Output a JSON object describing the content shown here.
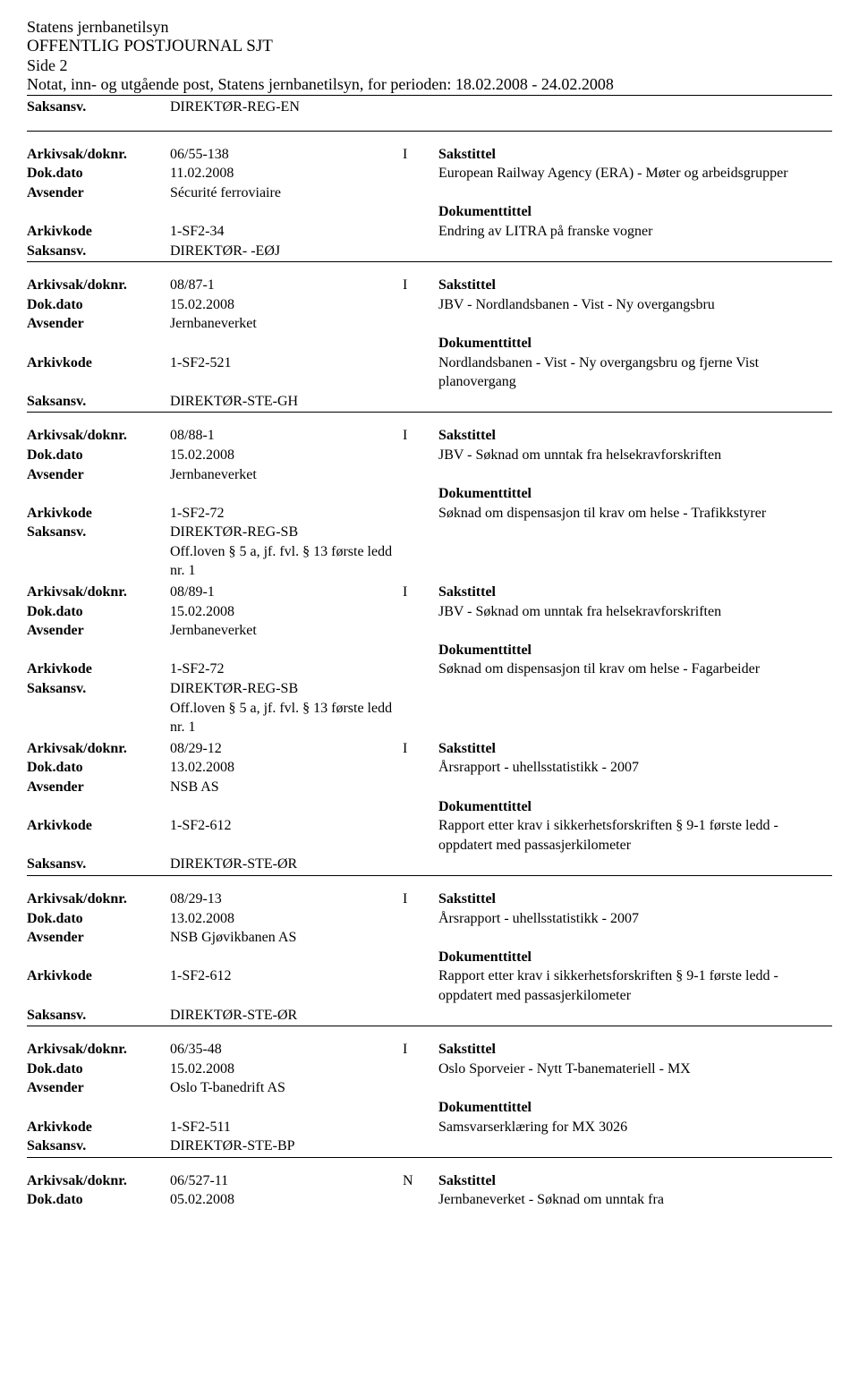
{
  "header": {
    "org": "Statens jernbanetilsyn",
    "title": "OFFENTLIG POSTJOURNAL SJT",
    "page": "Side 2",
    "period": "Notat, inn- og utgående post, Statens jernbanetilsyn, for perioden: 18.02.2008 - 24.02.2008"
  },
  "labels": {
    "saksansv": "Saksansv.",
    "arkivsak": "Arkivsak/doknr.",
    "dokdato": "Dok.dato",
    "avsender": "Avsender",
    "arkivkode": "Arkivkode",
    "sakstittel": "Sakstittel",
    "dokumenttittel": "Dokumenttittel"
  },
  "top_saksansv": "DIREKTØR-REG-EN",
  "entries": [
    {
      "arkivsak": "06/55-138",
      "marker": "I",
      "dokdato": "11.02.2008",
      "avsender": "Sécurité ferroviaire",
      "arkivkode": "1-SF2-34",
      "saksansv": "DIREKTØR- -EØJ",
      "sakstittel": "European Railway Agency (ERA) - Møter og arbeidsgrupper",
      "doktittel": "Endring av LITRA på franske vogner",
      "offloven": ""
    },
    {
      "arkivsak": "08/87-1",
      "marker": "I",
      "dokdato": "15.02.2008",
      "avsender": "Jernbaneverket",
      "arkivkode": "1-SF2-521",
      "saksansv": "DIREKTØR-STE-GH",
      "sakstittel": "JBV - Nordlandsbanen - Vist - Ny overgangsbru",
      "doktittel": "Nordlandsbanen - Vist - Ny overgangsbru og fjerne Vist planovergang",
      "offloven": ""
    },
    {
      "arkivsak": "08/88-1",
      "marker": "I",
      "dokdato": "15.02.2008",
      "avsender": "Jernbaneverket",
      "arkivkode": "1-SF2-72",
      "saksansv": "DIREKTØR-REG-SB",
      "sakstittel": "JBV - Søknad om unntak fra helsekravforskriften",
      "doktittel": "Søknad om dispensasjon til krav om helse - Trafikkstyrer",
      "offloven": "Off.loven § 5 a, jf. fvl. § 13 første ledd nr. 1"
    },
    {
      "arkivsak": "08/89-1",
      "marker": "I",
      "dokdato": "15.02.2008",
      "avsender": "Jernbaneverket",
      "arkivkode": "1-SF2-72",
      "saksansv": "DIREKTØR-REG-SB",
      "sakstittel": "JBV - Søknad om unntak fra helsekravforskriften",
      "doktittel": "Søknad om dispensasjon til krav om helse - Fagarbeider",
      "offloven": "Off.loven § 5 a, jf. fvl. § 13 første ledd nr. 1"
    },
    {
      "arkivsak": "08/29-12",
      "marker": "I",
      "dokdato": "13.02.2008",
      "avsender": "NSB AS",
      "arkivkode": "1-SF2-612",
      "saksansv": "DIREKTØR-STE-ØR",
      "sakstittel": "Årsrapport - uhellsstatistikk - 2007",
      "doktittel": "Rapport etter krav i sikkerhetsforskriften § 9-1 første ledd - oppdatert med passasjerkilometer",
      "offloven": ""
    },
    {
      "arkivsak": "08/29-13",
      "marker": "I",
      "dokdato": "13.02.2008",
      "avsender": "NSB Gjøvikbanen AS",
      "arkivkode": "1-SF2-612",
      "saksansv": "DIREKTØR-STE-ØR",
      "sakstittel": "Årsrapport - uhellsstatistikk - 2007",
      "doktittel": "Rapport etter krav i sikkerhetsforskriften § 9-1 første ledd - oppdatert med passasjerkilometer",
      "offloven": ""
    },
    {
      "arkivsak": "06/35-48",
      "marker": "I",
      "dokdato": "15.02.2008",
      "avsender": "Oslo T-banedrift AS",
      "arkivkode": "1-SF2-511",
      "saksansv": "DIREKTØR-STE-BP",
      "sakstittel": "Oslo Sporveier - Nytt T-banemateriell - MX",
      "doktittel": "Samsvarserklæring for MX 3026",
      "offloven": ""
    },
    {
      "arkivsak": "06/527-11",
      "marker": "N",
      "dokdato": "05.02.2008",
      "avsender": "",
      "arkivkode": "",
      "saksansv": "",
      "sakstittel": "Jernbaneverket - Søknad om unntak fra",
      "doktittel": "",
      "offloven": "",
      "partial": true
    }
  ]
}
